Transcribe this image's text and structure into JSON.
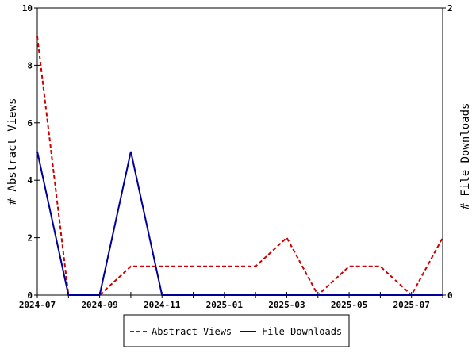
{
  "chart_data": {
    "type": "line",
    "x": [
      "2024-07",
      "2024-08",
      "2024-09",
      "2024-10",
      "2024-11",
      "2024-12",
      "2025-01",
      "2025-02",
      "2025-03",
      "2025-04",
      "2025-05",
      "2025-06",
      "2025-07",
      "2025-08"
    ],
    "x_tick_labels": [
      "2024-07",
      "2024-09",
      "2024-11",
      "2025-01",
      "2025-03",
      "2025-05",
      "2025-07"
    ],
    "ylabel_left": "# Abstract Views",
    "ylabel_right": "# File Downloads",
    "ylim_left": [
      0,
      10
    ],
    "ylim_right": [
      0,
      2
    ],
    "left_ticks": [
      "0",
      "2",
      "4",
      "6",
      "8",
      "10"
    ],
    "right_ticks": [
      "0",
      "2"
    ],
    "legend_position": "bottom-center",
    "grid": false,
    "series": [
      {
        "name": "Abstract Views",
        "axis": "left",
        "color": "#cc0000",
        "style": "dashed",
        "values": [
          9,
          0,
          0,
          1,
          1,
          1,
          1,
          1,
          2,
          0,
          1,
          1,
          0,
          2
        ]
      },
      {
        "name": "File Downloads",
        "axis": "right",
        "color": "#000099",
        "style": "solid",
        "values": [
          1,
          0,
          0,
          1,
          0,
          0,
          0,
          0,
          0,
          0,
          0,
          0,
          0,
          0
        ]
      }
    ]
  }
}
